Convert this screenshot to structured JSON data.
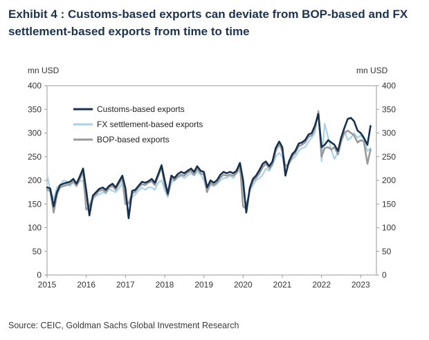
{
  "title": "Exhibit 4 : Customs-based exports can deviate from BOP-based and FX settlement-based exports from time to time",
  "source": "Source: CEIC, Goldman Sachs Global Investment Research",
  "chart_data": {
    "type": "line",
    "y_unit_left": "mn USD",
    "y_unit_right": "mn USD",
    "ylim": [
      0,
      400
    ],
    "y_ticks": [
      0,
      50,
      100,
      150,
      200,
      250,
      300,
      350,
      400
    ],
    "xlim": [
      2015.0,
      2023.4
    ],
    "x_ticks": [
      "2015",
      "2016",
      "2017",
      "2018",
      "2019",
      "2020",
      "2021",
      "2022",
      "2023"
    ],
    "grid": false,
    "legend_position": "top-left",
    "series": [
      {
        "name": "Customs-based exports",
        "color": "#16304f",
        "width": 2.6,
        "x": [
          2015.0,
          2015.08,
          2015.17,
          2015.25,
          2015.33,
          2015.42,
          2015.5,
          2015.58,
          2015.67,
          2015.75,
          2015.83,
          2015.92,
          2016.0,
          2016.08,
          2016.17,
          2016.25,
          2016.33,
          2016.42,
          2016.5,
          2016.58,
          2016.67,
          2016.75,
          2016.83,
          2016.92,
          2017.0,
          2017.08,
          2017.17,
          2017.25,
          2017.33,
          2017.42,
          2017.5,
          2017.58,
          2017.67,
          2017.75,
          2017.83,
          2017.92,
          2018.0,
          2018.08,
          2018.17,
          2018.25,
          2018.33,
          2018.42,
          2018.5,
          2018.58,
          2018.67,
          2018.75,
          2018.83,
          2018.92,
          2019.0,
          2019.08,
          2019.17,
          2019.25,
          2019.33,
          2019.42,
          2019.5,
          2019.58,
          2019.67,
          2019.75,
          2019.83,
          2019.92,
          2020.0,
          2020.08,
          2020.17,
          2020.25,
          2020.33,
          2020.42,
          2020.5,
          2020.58,
          2020.67,
          2020.75,
          2020.83,
          2020.92,
          2021.0,
          2021.08,
          2021.17,
          2021.25,
          2021.33,
          2021.42,
          2021.5,
          2021.58,
          2021.67,
          2021.75,
          2021.83,
          2021.92,
          2022.0,
          2022.08,
          2022.17,
          2022.25,
          2022.33,
          2022.42,
          2022.5,
          2022.58,
          2022.67,
          2022.75,
          2022.83,
          2022.92,
          2023.0,
          2023.08,
          2023.17,
          2023.25
        ],
        "y": [
          185,
          183,
          145,
          175,
          190,
          193,
          195,
          197,
          203,
          193,
          207,
          225,
          178,
          126,
          168,
          175,
          182,
          185,
          180,
          188,
          193,
          185,
          197,
          210,
          183,
          120,
          178,
          180,
          188,
          197,
          195,
          198,
          203,
          195,
          212,
          232,
          200,
          172,
          210,
          205,
          213,
          218,
          215,
          220,
          225,
          218,
          230,
          220,
          218,
          185,
          200,
          195,
          200,
          212,
          218,
          215,
          218,
          215,
          220,
          237,
          200,
          132,
          184,
          203,
          210,
          222,
          235,
          240,
          230,
          240,
          268,
          282,
          270,
          210,
          240,
          255,
          262,
          278,
          280,
          285,
          297,
          300,
          315,
          340,
          270,
          275,
          285,
          280,
          275,
          262,
          290,
          310,
          330,
          332,
          325,
          305,
          300,
          290,
          275,
          315
        ]
      },
      {
        "name": "FX settlement-based exports",
        "color": "#a9d2ea",
        "width": 2.2,
        "x": [
          2015.0,
          2015.08,
          2015.17,
          2015.25,
          2015.33,
          2015.42,
          2015.5,
          2015.58,
          2015.67,
          2015.75,
          2015.83,
          2015.92,
          2016.0,
          2016.08,
          2016.17,
          2016.25,
          2016.33,
          2016.42,
          2016.5,
          2016.58,
          2016.67,
          2016.75,
          2016.83,
          2016.92,
          2017.0,
          2017.08,
          2017.17,
          2017.25,
          2017.33,
          2017.42,
          2017.5,
          2017.58,
          2017.67,
          2017.75,
          2017.83,
          2017.92,
          2018.0,
          2018.08,
          2018.17,
          2018.25,
          2018.33,
          2018.42,
          2018.5,
          2018.58,
          2018.67,
          2018.75,
          2018.83,
          2018.92,
          2019.0,
          2019.08,
          2019.17,
          2019.25,
          2019.33,
          2019.42,
          2019.5,
          2019.58,
          2019.67,
          2019.75,
          2019.83,
          2019.92,
          2020.0,
          2020.08,
          2020.17,
          2020.25,
          2020.33,
          2020.42,
          2020.5,
          2020.58,
          2020.67,
          2020.75,
          2020.83,
          2020.92,
          2021.0,
          2021.08,
          2021.17,
          2021.25,
          2021.33,
          2021.42,
          2021.5,
          2021.58,
          2021.67,
          2021.75,
          2021.83,
          2021.92,
          2022.0,
          2022.08,
          2022.17,
          2022.25,
          2022.33,
          2022.42,
          2022.5,
          2022.58,
          2022.67,
          2022.75,
          2022.83,
          2022.92,
          2023.0,
          2023.08,
          2023.17,
          2023.25
        ],
        "y": [
          212,
          180,
          160,
          185,
          190,
          200,
          198,
          188,
          195,
          190,
          198,
          200,
          150,
          148,
          160,
          168,
          170,
          175,
          172,
          182,
          178,
          175,
          182,
          195,
          150,
          150,
          165,
          170,
          178,
          185,
          180,
          185,
          185,
          180,
          195,
          200,
          180,
          165,
          195,
          200,
          205,
          210,
          205,
          210,
          215,
          210,
          218,
          212,
          200,
          178,
          190,
          188,
          192,
          200,
          205,
          205,
          210,
          205,
          215,
          222,
          175,
          148,
          178,
          190,
          200,
          205,
          212,
          225,
          220,
          232,
          250,
          258,
          250,
          220,
          235,
          245,
          250,
          262,
          268,
          270,
          282,
          290,
          300,
          348,
          240,
          320,
          290,
          265,
          245,
          260,
          290,
          305,
          285,
          290,
          300,
          290,
          295,
          285,
          262,
          268
        ]
      },
      {
        "name": "BOP-based exports",
        "color": "#9a9a9a",
        "width": 2.6,
        "x": [
          2015.0,
          2015.08,
          2015.17,
          2015.25,
          2015.33,
          2015.42,
          2015.5,
          2015.58,
          2015.67,
          2015.75,
          2015.83,
          2015.92,
          2016.0,
          2016.08,
          2016.17,
          2016.25,
          2016.33,
          2016.42,
          2016.5,
          2016.58,
          2016.67,
          2016.75,
          2016.83,
          2016.92,
          2017.0,
          2017.08,
          2017.17,
          2017.25,
          2017.33,
          2017.42,
          2017.5,
          2017.58,
          2017.67,
          2017.75,
          2017.83,
          2017.92,
          2018.0,
          2018.08,
          2018.17,
          2018.25,
          2018.33,
          2018.42,
          2018.5,
          2018.58,
          2018.67,
          2018.75,
          2018.83,
          2018.92,
          2019.0,
          2019.08,
          2019.17,
          2019.25,
          2019.33,
          2019.42,
          2019.5,
          2019.58,
          2019.67,
          2019.75,
          2019.83,
          2019.92,
          2020.0,
          2020.08,
          2020.17,
          2020.25,
          2020.33,
          2020.42,
          2020.5,
          2020.58,
          2020.67,
          2020.75,
          2020.83,
          2020.92,
          2021.0,
          2021.08,
          2021.17,
          2021.25,
          2021.33,
          2021.42,
          2021.5,
          2021.58,
          2021.67,
          2021.75,
          2021.83,
          2021.92,
          2022.0,
          2022.08,
          2022.17,
          2022.25,
          2022.33,
          2022.42,
          2022.5,
          2022.58,
          2022.67,
          2022.75,
          2022.83,
          2022.92,
          2023.0,
          2023.08,
          2023.17,
          2023.25
        ],
        "y": [
          180,
          178,
          132,
          170,
          185,
          188,
          190,
          192,
          198,
          188,
          202,
          218,
          138,
          145,
          165,
          170,
          178,
          180,
          175,
          185,
          188,
          180,
          192,
          205,
          150,
          152,
          172,
          176,
          185,
          192,
          190,
          195,
          198,
          190,
          208,
          228,
          190,
          168,
          205,
          200,
          208,
          212,
          210,
          216,
          220,
          212,
          225,
          215,
          212,
          175,
          195,
          190,
          195,
          206,
          212,
          210,
          212,
          210,
          215,
          232,
          145,
          140,
          180,
          198,
          205,
          215,
          228,
          235,
          225,
          235,
          262,
          276,
          262,
          230,
          235,
          250,
          258,
          272,
          275,
          280,
          292,
          295,
          310,
          345,
          250,
          268,
          270,
          265,
          270,
          255,
          282,
          300,
          305,
          300,
          295,
          280,
          285,
          282,
          235,
          265
        ]
      }
    ]
  }
}
